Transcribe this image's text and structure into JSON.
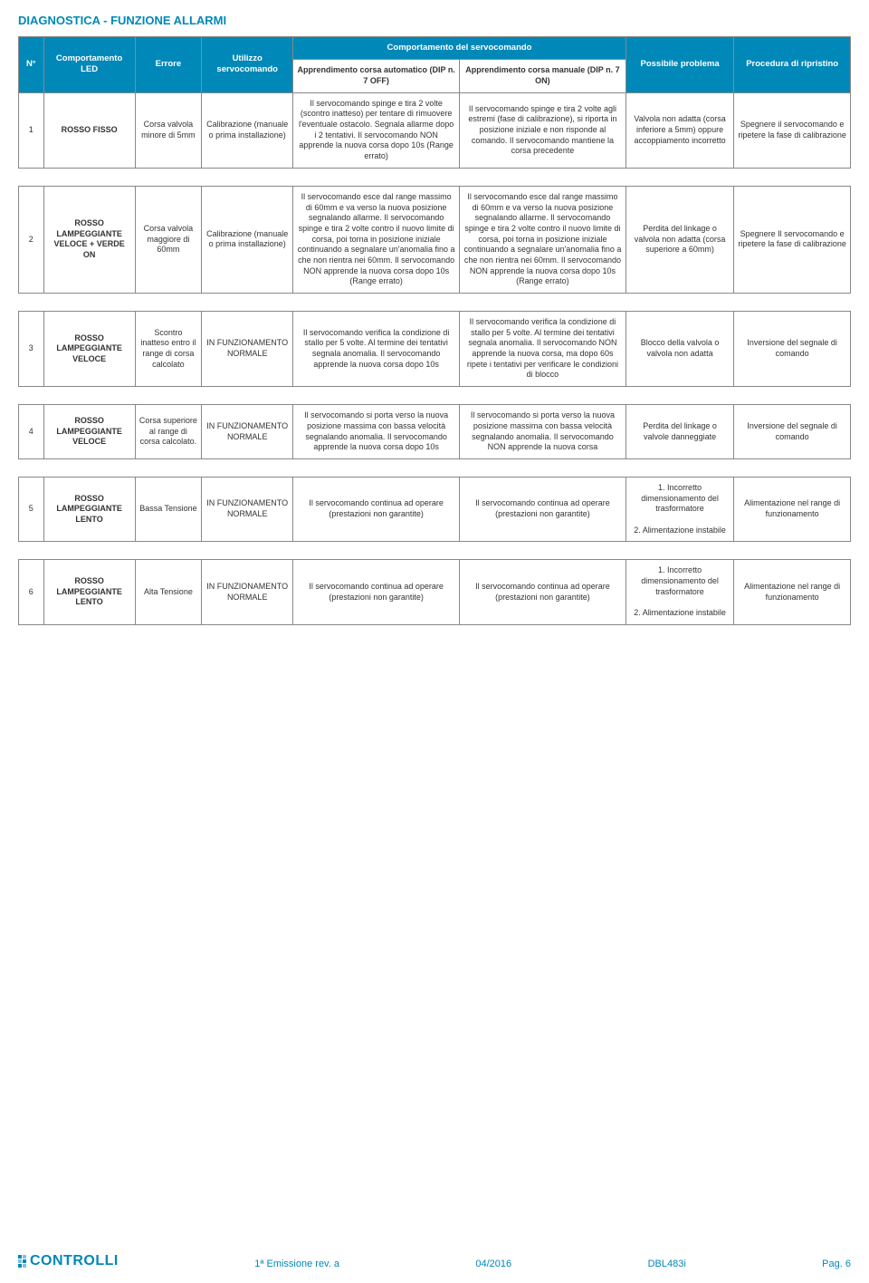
{
  "title": "DIAGNOSTICA - FUNZIONE ALLARMI",
  "headers": {
    "n": "N°",
    "led": "Comportamento LED",
    "err": "Errore",
    "util": "Utilizzo servocomando",
    "comp": "Comportamento del servocomando",
    "prob": "Possibile problema",
    "proc": "Procedura di ripristino",
    "auto": "Apprendimento corsa automatico (DIP n. 7 OFF)",
    "man": "Apprendimento corsa manuale (DIP n. 7 ON)"
  },
  "rows": [
    {
      "n": "1",
      "led": "ROSSO FISSO",
      "err": "Corsa valvola minore di 5mm",
      "util": "Calibrazione (manuale o prima installazione)",
      "auto": "Il servocomando spinge e tira 2 volte (scontro inatteso) per tentare di rimuovere l'eventuale ostacolo. Segnala allarme dopo i 2 tentativi. Il servocomando NON apprende la nuova corsa dopo 10s (Range errato)",
      "man": "Il servocomando spinge e tira 2 volte agli estremi (fase di calibrazione), si riporta in posizione iniziale e non risponde al comando. Il servocomando mantiene la corsa precedente",
      "prob": "Valvola non adatta (corsa inferiore a 5mm) oppure accoppiamento incorretto",
      "proc": "Spegnere il servocomando e ripetere la fase di calibrazione"
    },
    {
      "n": "2",
      "led": "ROSSO LAMPEGGIANTE VELOCE + VERDE ON",
      "err": "Corsa valvola maggiore di 60mm",
      "util": "Calibrazione (manuale o prima installazione)",
      "auto": "Il servocomando esce dal range massimo di 60mm e va verso la nuova posizione segnalando allarme. Il servocomando spinge e tira 2 volte contro il nuovo limite di corsa, poi torna in posizione iniziale continuando a segnalare un'anomalia fino a che non rientra nei 60mm. Il servocomando NON apprende la nuova corsa dopo 10s (Range errato)",
      "man": "Il servocomando esce dal range massimo di 60mm e va verso la nuova posizione segnalando allarme. Il servocomando spinge e tira 2 volte contro il nuovo limite di corsa, poi torna in posizione iniziale continuando a segnalare un'anomalia fino a che non rientra nei 60mm. Il servocomando NON apprende la nuova corsa dopo 10s (Range errato)",
      "prob": "Perdita del linkage o valvola non adatta (corsa superiore a 60mm)",
      "proc": "Spegnere Il servocomando e ripetere la fase di calibrazione"
    },
    {
      "n": "3",
      "led": "ROSSO LAMPEGGIANTE VELOCE",
      "err": "Scontro inatteso entro il range di corsa calcolato",
      "util": "IN FUNZIONAMENTO NORMALE",
      "auto": "Il servocomando verifica la condizione di stallo per 5 volte. Al termine dei tentativi segnala anomalia. Il servocomando apprende la nuova corsa dopo 10s",
      "man": "Il servocomando verifica la condizione di stallo per 5 volte. Al termine dei tentativi segnala anomalia. Il servocomando NON apprende la nuova corsa, ma dopo 60s ripete i tentativi per verificare le condizioni di blocco",
      "prob": "Blocco della valvola o valvola non adatta",
      "proc": "Inversione del segnale di comando"
    },
    {
      "n": "4",
      "led": "ROSSO LAMPEGGIANTE VELOCE",
      "err": "Corsa superiore al range di corsa calcolato.",
      "util": "IN FUNZIONAMENTO NORMALE",
      "auto": "Il servocomando si porta verso la nuova posizione massima con bassa velocità segnalando anomalia. Il servocomando apprende la nuova corsa dopo 10s",
      "man": "Il servocomando si porta verso la nuova posizione massima con bassa velocità segnalando anomalia. Il servocomando NON apprende la nuova corsa",
      "prob": "Perdita del linkage o valvole danneggiate",
      "proc": "Inversione del segnale di comando"
    },
    {
      "n": "5",
      "led": "ROSSO LAMPEGGIANTE LENTO",
      "err": "Bassa Tensione",
      "util": "IN FUNZIONAMENTO NORMALE",
      "auto": "Il servocomando continua ad operare (prestazioni non garantite)",
      "man": "Il servocomando continua ad operare (prestazioni non garantite)",
      "prob": "1. Incorretto dimensionamento del trasformatore\n\n2. Alimentazione instabile",
      "proc": "Alimentazione nel range di funzionamento"
    },
    {
      "n": "6",
      "led": "ROSSO LAMPEGGIANTE LENTO",
      "err": "Alta Tensione",
      "util": "IN FUNZIONAMENTO NORMALE",
      "auto": "Il servocomando continua ad operare (prestazioni non garantite)",
      "man": "Il servocomando continua ad operare (prestazioni non garantite)",
      "prob": "1. Incorretto dimensionamento del trasformatore\n\n2. Alimentazione instabile",
      "proc": "Alimentazione nel range di funzionamento"
    }
  ],
  "footer": {
    "logo": "CONTROLLI",
    "rev": "1ª Emissione rev. a",
    "date": "04/2016",
    "code": "DBL483i",
    "page": "Pag. 6"
  },
  "colors": {
    "primary": "#0088b8",
    "border": "#888888",
    "bg": "#ffffff",
    "text": "#333333"
  }
}
